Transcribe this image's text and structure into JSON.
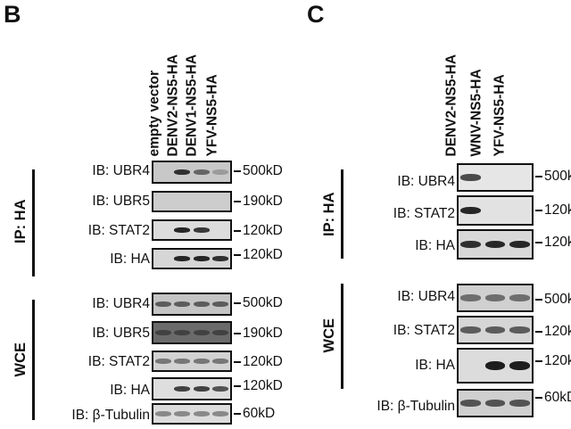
{
  "panels": [
    {
      "letter": "B",
      "lanes": [
        "empty vector",
        "DENV2-NS5-HA",
        "DENV1-NS5-HA",
        "YFV-NS5-HA"
      ],
      "sections": [
        {
          "label": "IP: HA",
          "blots": [
            {
              "label": "IB: UBR4",
              "mw": "500kD",
              "background": "#c8c8c8",
              "bands": [
                {
                  "lane": 2,
                  "intensity": 0.85
                },
                {
                  "lane": 3,
                  "intensity": 0.55
                },
                {
                  "lane": 4,
                  "intensity": 0.25
                }
              ]
            },
            {
              "label": "IB: UBR5",
              "mw": "190kD",
              "background": "#cdcdcd",
              "bands": []
            },
            {
              "label": "IB: STAT2",
              "mw": "120kD",
              "background": "#dcdcdc",
              "bands": [
                {
                  "lane": 2,
                  "intensity": 0.9
                },
                {
                  "lane": 3,
                  "intensity": 0.8
                }
              ]
            },
            {
              "label": "IB: HA",
              "mw": "120kD",
              "background": "#d6d6d6",
              "bands": [
                {
                  "lane": 2,
                  "intensity": 0.9
                },
                {
                  "lane": 3,
                  "intensity": 0.9
                },
                {
                  "lane": 4,
                  "intensity": 0.85
                }
              ]
            }
          ]
        },
        {
          "label": "WCE",
          "blots": [
            {
              "label": "IB: UBR4",
              "mw": "500kD",
              "background": "#c4c4c4",
              "bands": [
                {
                  "lane": 1,
                  "intensity": 0.6
                },
                {
                  "lane": 2,
                  "intensity": 0.6
                },
                {
                  "lane": 3,
                  "intensity": 0.6
                },
                {
                  "lane": 4,
                  "intensity": 0.6
                }
              ]
            },
            {
              "label": "IB: UBR5",
              "mw": "190kD",
              "background": "#6a6a6a",
              "bands": [
                {
                  "lane": 1,
                  "intensity": 0.75
                },
                {
                  "lane": 2,
                  "intensity": 0.75
                },
                {
                  "lane": 3,
                  "intensity": 0.75
                },
                {
                  "lane": 4,
                  "intensity": 0.75
                }
              ]
            },
            {
              "label": "IB: STAT2",
              "mw": "120kD",
              "background": "#d2d2d2",
              "bands": [
                {
                  "lane": 1,
                  "intensity": 0.45
                },
                {
                  "lane": 2,
                  "intensity": 0.45
                },
                {
                  "lane": 3,
                  "intensity": 0.45
                },
                {
                  "lane": 4,
                  "intensity": 0.45
                }
              ]
            },
            {
              "label": "IB: HA",
              "mw": "120kD",
              "background": "#dedede",
              "bands": [
                {
                  "lane": 2,
                  "intensity": 0.75
                },
                {
                  "lane": 3,
                  "intensity": 0.75
                },
                {
                  "lane": 4,
                  "intensity": 0.65
                }
              ]
            },
            {
              "label": "IB: β-Tubulin",
              "mw": "60kD",
              "background": "#dcdcdc",
              "bands": [
                {
                  "lane": 1,
                  "intensity": 0.35
                },
                {
                  "lane": 2,
                  "intensity": 0.35
                },
                {
                  "lane": 3,
                  "intensity": 0.35
                },
                {
                  "lane": 4,
                  "intensity": 0.35
                }
              ]
            }
          ]
        }
      ]
    },
    {
      "letter": "C",
      "lanes": [
        "DENV2-NS5-HA",
        "WNV-NS5-HA",
        "YFV-NS5-HA"
      ],
      "sections": [
        {
          "label": "IP: HA",
          "blots": [
            {
              "label": "IB: UBR4",
              "mw": "500kD",
              "background": "#e6e6e6",
              "bands": [
                {
                  "lane": 1,
                  "intensity": 0.7
                }
              ]
            },
            {
              "label": "IB: STAT2",
              "mw": "120kD",
              "background": "#e2e2e2",
              "bands": [
                {
                  "lane": 1,
                  "intensity": 0.9
                }
              ]
            },
            {
              "label": "IB: HA",
              "mw": "120kD",
              "background": "#d8d8d8",
              "bands": [
                {
                  "lane": 1,
                  "intensity": 0.85
                },
                {
                  "lane": 2,
                  "intensity": 0.9
                },
                {
                  "lane": 3,
                  "intensity": 0.9
                }
              ]
            }
          ]
        },
        {
          "label": "WCE",
          "blots": [
            {
              "label": "IB: UBR4",
              "mw": "500kD",
              "background": "#d0d0d0",
              "bands": [
                {
                  "lane": 1,
                  "intensity": 0.5
                },
                {
                  "lane": 2,
                  "intensity": 0.5
                },
                {
                  "lane": 3,
                  "intensity": 0.5
                }
              ]
            },
            {
              "label": "IB: STAT2",
              "mw": "120kD",
              "background": "#d6d6d6",
              "bands": [
                {
                  "lane": 1,
                  "intensity": 0.6
                },
                {
                  "lane": 2,
                  "intensity": 0.6
                },
                {
                  "lane": 3,
                  "intensity": 0.6
                }
              ]
            },
            {
              "label": "IB: HA",
              "mw": "120kD",
              "background": "#dcdcdc",
              "bands": [
                {
                  "lane": 2,
                  "intensity": 0.95
                },
                {
                  "lane": 3,
                  "intensity": 0.95
                }
              ]
            },
            {
              "label": "IB: β-Tubulin",
              "mw": "60kD",
              "background": "#cfcfcf",
              "bands": [
                {
                  "lane": 1,
                  "intensity": 0.65
                },
                {
                  "lane": 2,
                  "intensity": 0.65
                },
                {
                  "lane": 3,
                  "intensity": 0.65
                }
              ]
            }
          ]
        }
      ]
    }
  ]
}
